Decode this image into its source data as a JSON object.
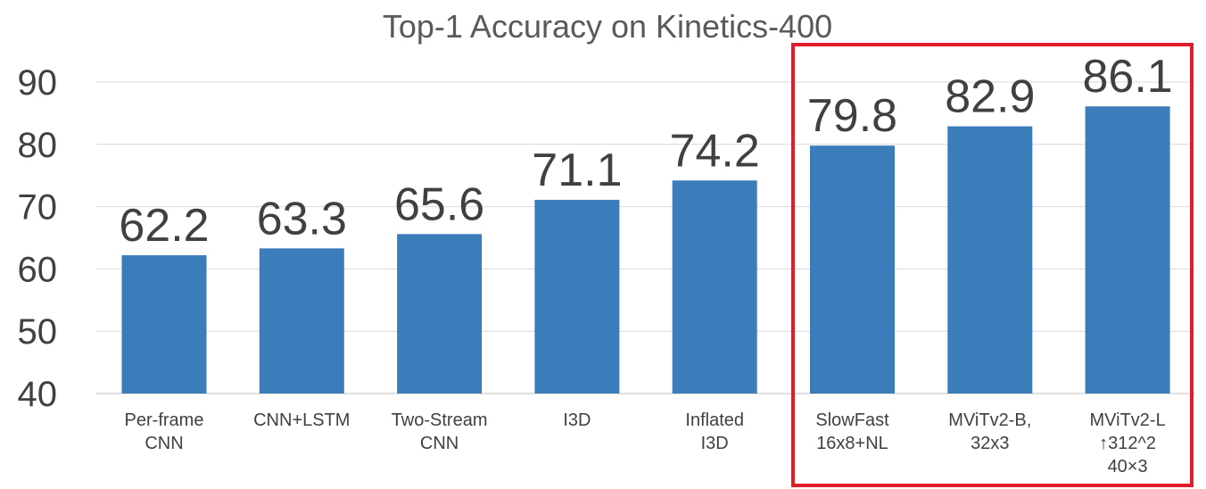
{
  "chart_data": {
    "type": "bar",
    "title": "Top-1 Accuracy on Kinetics-400",
    "xlabel": "",
    "ylabel": "",
    "ylim": [
      40,
      90
    ],
    "yticks": [
      40,
      50,
      60,
      70,
      80,
      90
    ],
    "grid": true,
    "categories": [
      [
        "Per-frame",
        "CNN"
      ],
      [
        "CNN+LSTM"
      ],
      [
        "Two-Stream",
        "CNN"
      ],
      [
        "I3D"
      ],
      [
        "Inflated",
        "I3D"
      ],
      [
        "SlowFast",
        "16x8+NL"
      ],
      [
        "MViTv2-B,",
        "32x3"
      ],
      [
        "MViTv2-L",
        "↑312^2",
        "40×3"
      ]
    ],
    "values": [
      62.2,
      63.3,
      65.6,
      71.1,
      74.2,
      79.8,
      82.9,
      86.1
    ],
    "data_labels": [
      "62.2",
      "63.3",
      "65.6",
      "71.1",
      "74.2",
      "79.8",
      "82.9",
      "86.1"
    ],
    "bar_color": "#3a7dba",
    "highlight": {
      "categories_index": [
        5,
        6,
        7
      ],
      "color": "#e11d2a"
    }
  }
}
